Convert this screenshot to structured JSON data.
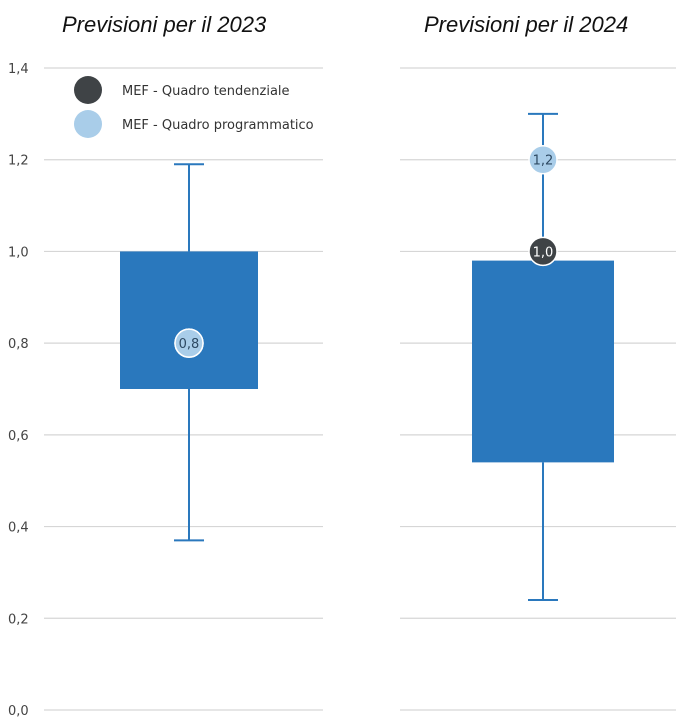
{
  "chart_data": {
    "type": "box",
    "ylim": [
      0.0,
      1.4
    ],
    "yticks": [
      "0,0",
      "0,2",
      "0,4",
      "0,6",
      "0,8",
      "1,0",
      "1,2",
      "1,4"
    ],
    "ytick_values": [
      0.0,
      0.2,
      0.4,
      0.6,
      0.8,
      1.0,
      1.2,
      1.4
    ],
    "grid": true,
    "legend": {
      "placement": "top-left",
      "entries": [
        {
          "label": "MEF - Quadro tendenziale",
          "color": "#3f4346"
        },
        {
          "label": "MEF - Quadro programmatico",
          "color": "#a9cde9"
        }
      ]
    },
    "colors": {
      "box": "#2a78bd",
      "whisker": "#2a78bd",
      "grid": "#d6d6d6"
    },
    "panels": [
      {
        "title": "Previsioni per il 2023",
        "whisker_low": 0.37,
        "box_low": 0.7,
        "box_high": 1.0,
        "whisker_high": 1.19,
        "markers": [
          {
            "series": "MEF - Quadro tendenziale",
            "value": 0.8,
            "label": ""
          },
          {
            "series": "MEF - Quadro programmatico",
            "value": 0.8,
            "label": "0,8"
          }
        ]
      },
      {
        "title": "Previsioni per il 2024",
        "whisker_low": 0.24,
        "box_low": 0.54,
        "box_high": 0.98,
        "whisker_high": 1.3,
        "markers": [
          {
            "series": "MEF - Quadro programmatico",
            "value": 1.2,
            "label": "1,2"
          },
          {
            "series": "MEF - Quadro tendenziale",
            "value": 1.0,
            "label": "1,0"
          }
        ]
      }
    ]
  }
}
